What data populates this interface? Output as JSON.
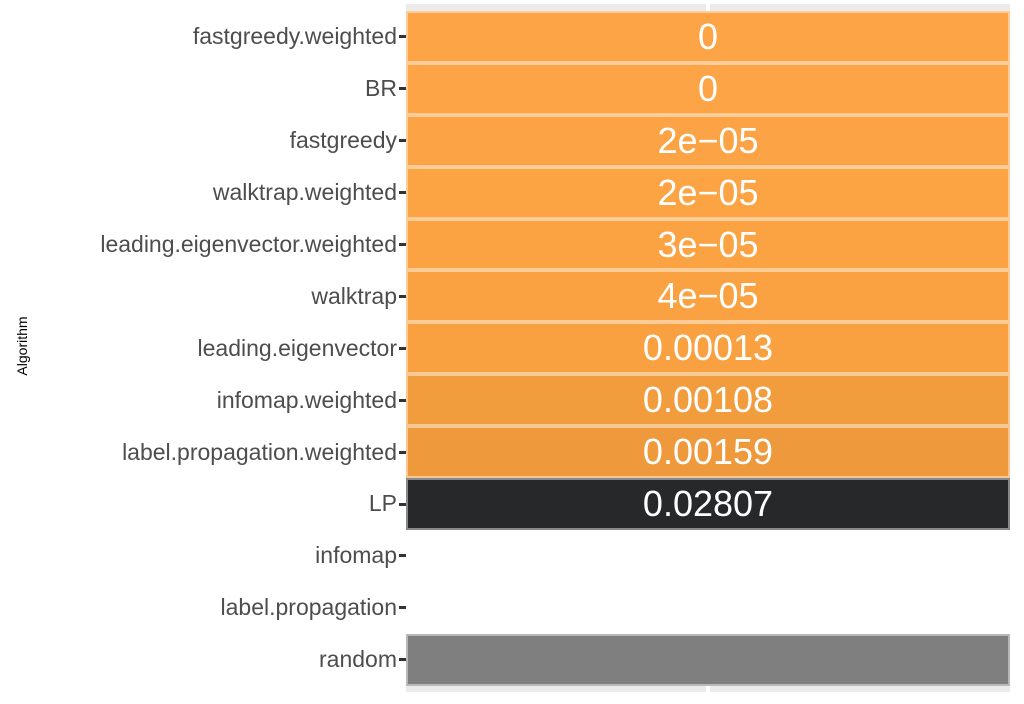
{
  "chart_data": {
    "type": "heatmap",
    "orientation": "horizontal",
    "title": "",
    "xlabel": "",
    "ylabel": "Algorithm",
    "legend": "none",
    "grid": "single white vertical major gridline at panel center, visible only in panel background strips",
    "categories": [
      "fastgreedy.weighted",
      "BR",
      "fastgreedy",
      "walktrap.weighted",
      "leading.eigenvector.weighted",
      "walktrap",
      "leading.eigenvector",
      "infomap.weighted",
      "label.propagation.weighted",
      "LP",
      "infomap",
      "label.propagation",
      "random"
    ],
    "values": [
      0,
      0,
      2e-05,
      2e-05,
      3e-05,
      4e-05,
      0.00013,
      0.00108,
      0.00159,
      0.02807,
      null,
      null,
      null
    ],
    "value_labels": [
      "0",
      "0",
      "2e−05",
      "2e−05",
      "3e−05",
      "4e−05",
      "0.00013",
      "0.00108",
      "0.00159",
      "0.02807",
      "",
      "",
      ""
    ],
    "tile_colors": [
      "#FDA546",
      "#FDA546",
      "#FCA445",
      "#FCA444",
      "#FBA343",
      "#FAA242",
      "#F9A141",
      "#F19C3D",
      "#EE993C",
      "#27282A",
      "#FFFFFF",
      "#FFFFFF",
      "#7F7F7F"
    ],
    "colors": {
      "panel_background": "#EBEBEB",
      "gridline": "#FFFFFF",
      "value_label": "#FFFFFF",
      "axis_text": "#4D4D4D",
      "axis_title": "#000000",
      "tick": "#333333",
      "tile_border": "rgba(255,255,255,0.45)"
    }
  }
}
